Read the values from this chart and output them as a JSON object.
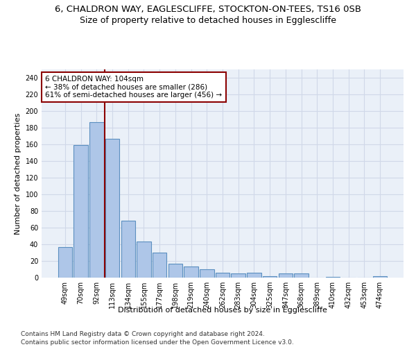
{
  "title_line1": "6, CHALDRON WAY, EAGLESCLIFFE, STOCKTON-ON-TEES, TS16 0SB",
  "title_line2": "Size of property relative to detached houses in Egglescliffe",
  "xlabel": "Distribution of detached houses by size in Egglescliffe",
  "ylabel": "Number of detached properties",
  "categories": [
    "49sqm",
    "70sqm",
    "92sqm",
    "113sqm",
    "134sqm",
    "155sqm",
    "177sqm",
    "198sqm",
    "219sqm",
    "240sqm",
    "262sqm",
    "283sqm",
    "304sqm",
    "325sqm",
    "347sqm",
    "368sqm",
    "389sqm",
    "410sqm",
    "432sqm",
    "453sqm",
    "474sqm"
  ],
  "values": [
    37,
    159,
    187,
    167,
    68,
    43,
    30,
    17,
    13,
    10,
    6,
    5,
    6,
    2,
    5,
    5,
    0,
    1,
    0,
    0,
    2
  ],
  "bar_color": "#aec6e8",
  "bar_edge_color": "#5a8fc0",
  "vline_x_idx": 2,
  "vline_color": "#8b0000",
  "annotation_line1": "6 CHALDRON WAY: 104sqm",
  "annotation_line2": "← 38% of detached houses are smaller (286)",
  "annotation_line3": "61% of semi-detached houses are larger (456) →",
  "annotation_box_color": "white",
  "annotation_box_edge": "#8b0000",
  "ylim": [
    0,
    250
  ],
  "yticks": [
    0,
    20,
    40,
    60,
    80,
    100,
    120,
    140,
    160,
    180,
    200,
    220,
    240
  ],
  "grid_color": "#d0d8e8",
  "bg_color": "#eaf0f8",
  "footer_line1": "Contains HM Land Registry data © Crown copyright and database right 2024.",
  "footer_line2": "Contains public sector information licensed under the Open Government Licence v3.0.",
  "title_fontsize": 9.5,
  "subtitle_fontsize": 9,
  "label_fontsize": 8,
  "tick_fontsize": 7,
  "annot_fontsize": 7.5,
  "footer_fontsize": 6.5
}
